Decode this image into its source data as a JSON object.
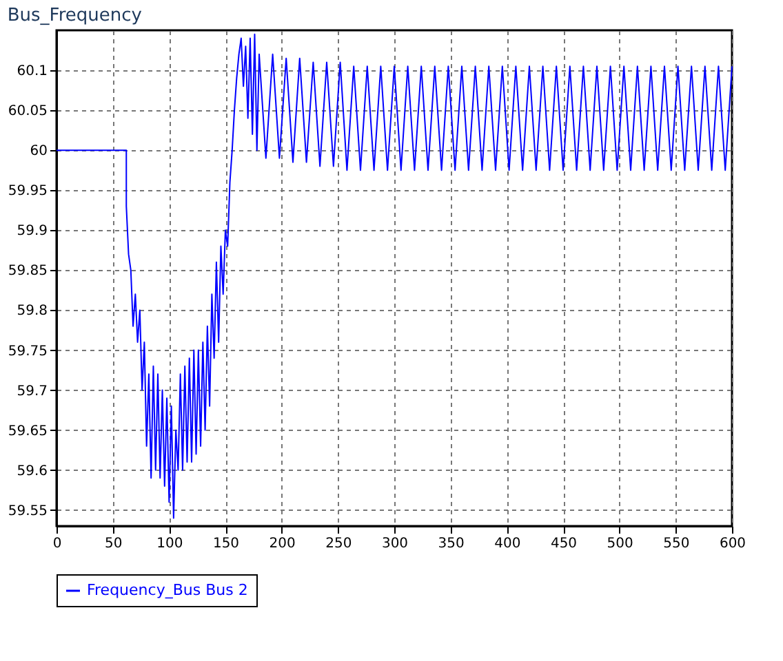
{
  "chart_data": {
    "type": "line",
    "title": "Bus_Frequency",
    "xlim": [
      0,
      600
    ],
    "xticks": [
      0,
      50,
      100,
      150,
      200,
      250,
      300,
      350,
      400,
      450,
      500,
      550,
      600
    ],
    "ylim": [
      59.53,
      60.15
    ],
    "yticks": [
      59.55,
      59.6,
      59.65,
      59.7,
      59.75,
      59.8,
      59.85,
      59.9,
      59.95,
      60,
      60.05,
      60.1
    ],
    "grid": true,
    "legend": "bottom",
    "marker": "none",
    "line_style": "solid",
    "series": [
      {
        "name": "Frequency_Bus Bus 2",
        "color": "#0000ff",
        "x": [
          0,
          62,
          62,
          64,
          66,
          68,
          70,
          72,
          74,
          76,
          78,
          80,
          82,
          84,
          86,
          88,
          90,
          92,
          94,
          96,
          98,
          100,
          102,
          104,
          106,
          108,
          110,
          112,
          114,
          116,
          118,
          120,
          122,
          124,
          126,
          128,
          130,
          132,
          134,
          136,
          138,
          140,
          142,
          144,
          146,
          148,
          150,
          152,
          154,
          156,
          158,
          160,
          162,
          164,
          166,
          168,
          170,
          172,
          174,
          176,
          178,
          180,
          186,
          192,
          198,
          204,
          210,
          216,
          222,
          228,
          234,
          240,
          246,
          252,
          258,
          264,
          270,
          276,
          282,
          288,
          294,
          300,
          306,
          312,
          318,
          324,
          330,
          336,
          342,
          348,
          354,
          360,
          366,
          372,
          378,
          384,
          390,
          396,
          402,
          408,
          414,
          420,
          426,
          432,
          438,
          444,
          450,
          456,
          462,
          468,
          474,
          480,
          486,
          492,
          498,
          504,
          510,
          516,
          522,
          528,
          534,
          540,
          546,
          552,
          558,
          564,
          570,
          576,
          582,
          588,
          594,
          600
        ],
        "values": [
          60,
          60,
          59.93,
          59.87,
          59.85,
          59.78,
          59.82,
          59.76,
          59.8,
          59.7,
          59.76,
          59.63,
          59.72,
          59.59,
          59.73,
          59.6,
          59.72,
          59.59,
          59.7,
          59.58,
          59.69,
          59.56,
          59.68,
          59.54,
          59.65,
          59.6,
          59.72,
          59.6,
          59.73,
          59.61,
          59.74,
          59.61,
          59.75,
          59.62,
          59.75,
          59.63,
          59.76,
          59.65,
          59.78,
          59.68,
          59.82,
          59.74,
          59.86,
          59.76,
          59.88,
          59.82,
          59.9,
          59.88,
          59.96,
          60.0,
          60.05,
          60.09,
          60.12,
          60.14,
          60.08,
          60.13,
          60.04,
          60.14,
          60.02,
          60.145,
          60.0,
          60.12,
          59.99,
          60.12,
          59.99,
          60.115,
          59.985,
          60.115,
          59.985,
          60.11,
          59.98,
          60.11,
          59.98,
          60.11,
          59.975,
          60.105,
          59.975,
          60.105,
          59.975,
          60.105,
          59.975,
          60.105,
          59.975,
          60.105,
          59.975,
          60.105,
          59.975,
          60.105,
          59.975,
          60.105,
          59.975,
          60.105,
          59.975,
          60.105,
          59.975,
          60.105,
          59.975,
          60.105,
          59.975,
          60.105,
          59.975,
          60.105,
          59.975,
          60.105,
          59.975,
          60.105,
          59.975,
          60.105,
          59.975,
          60.105,
          59.975,
          60.105,
          59.975,
          60.105,
          59.975,
          60.105,
          59.975,
          60.105,
          59.975,
          60.105,
          59.975,
          60.105,
          59.975,
          60.105,
          59.975,
          60.105,
          59.975,
          60.105,
          59.975,
          60.105,
          59.975,
          60.105
        ]
      }
    ]
  }
}
